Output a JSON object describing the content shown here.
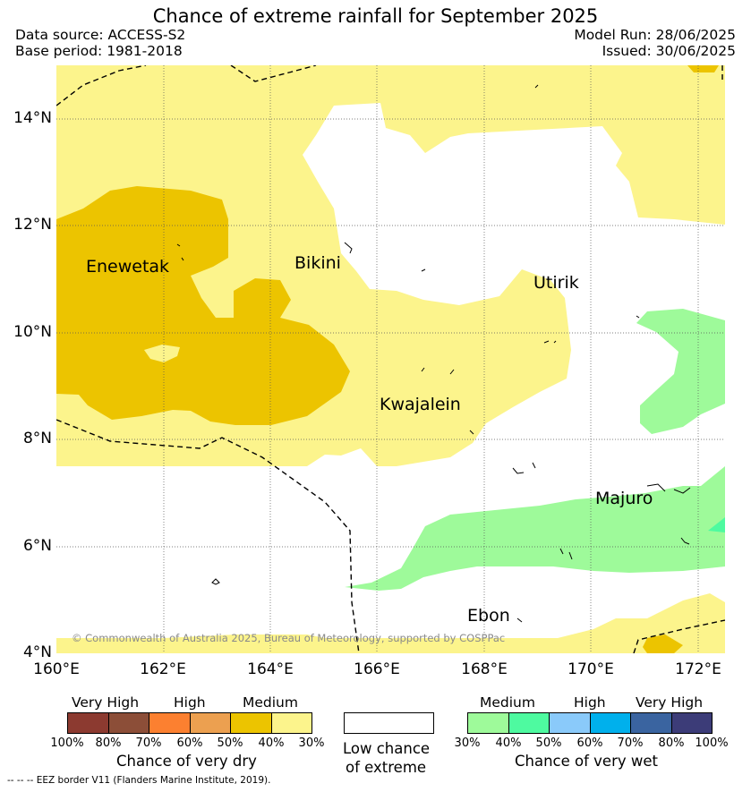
{
  "title": "Chance of extreme rainfall for September 2025",
  "data_source": "Data source: ACCESS-S2",
  "base_period": "Base period: 1981-2018",
  "model_run": "Model Run: 28/06/2025",
  "issued": "Issued: 30/06/2025",
  "map": {
    "lat_labels": [
      "14°N",
      "12°N",
      "10°N",
      "8°N",
      "6°N",
      "4°N"
    ],
    "lon_labels": [
      "160°E",
      "162°E",
      "164°E",
      "166°E",
      "168°E",
      "170°E",
      "172°E"
    ],
    "places": [
      "Enewetak",
      "Bikini",
      "Utirik",
      "Kwajalein",
      "Majuro",
      "Ebon"
    ],
    "copyright": "© Commonwealth of Australia 2025, Bureau of Meteorology, supported by COSPPac",
    "colors": {
      "dry_medium_30_40": "#fcf48c",
      "dry_medium_40_50": "#ecc400",
      "wet_medium_30_40": "#9efa9a",
      "wet_medium_40_50": "#4efaa0"
    }
  },
  "legend": {
    "dry": {
      "groups": [
        "Very High",
        "High",
        "Medium"
      ],
      "percents": [
        "100%",
        "80%",
        "70%",
        "60%",
        "50%",
        "40%",
        "30%"
      ],
      "colors": [
        "#8c3a30",
        "#8c4e38",
        "#fc8030",
        "#eca050",
        "#ecc400",
        "#fcf48c"
      ],
      "caption": "Chance of very dry"
    },
    "neutral": {
      "caption_line1": "Low chance",
      "caption_line2": "of extreme"
    },
    "wet": {
      "groups": [
        "Medium",
        "High",
        "Very High"
      ],
      "percents": [
        "30%",
        "40%",
        "50%",
        "60%",
        "70%",
        "80%",
        "100%"
      ],
      "colors": [
        "#9efa9a",
        "#4efaa0",
        "#8acafa",
        "#00b0ec",
        "#3a64a0",
        "#3c3c78"
      ],
      "caption": "Chance of very wet"
    }
  },
  "eez_note": "--  --  -- EEZ border V11 (Flanders Marine Institute, 2019)."
}
